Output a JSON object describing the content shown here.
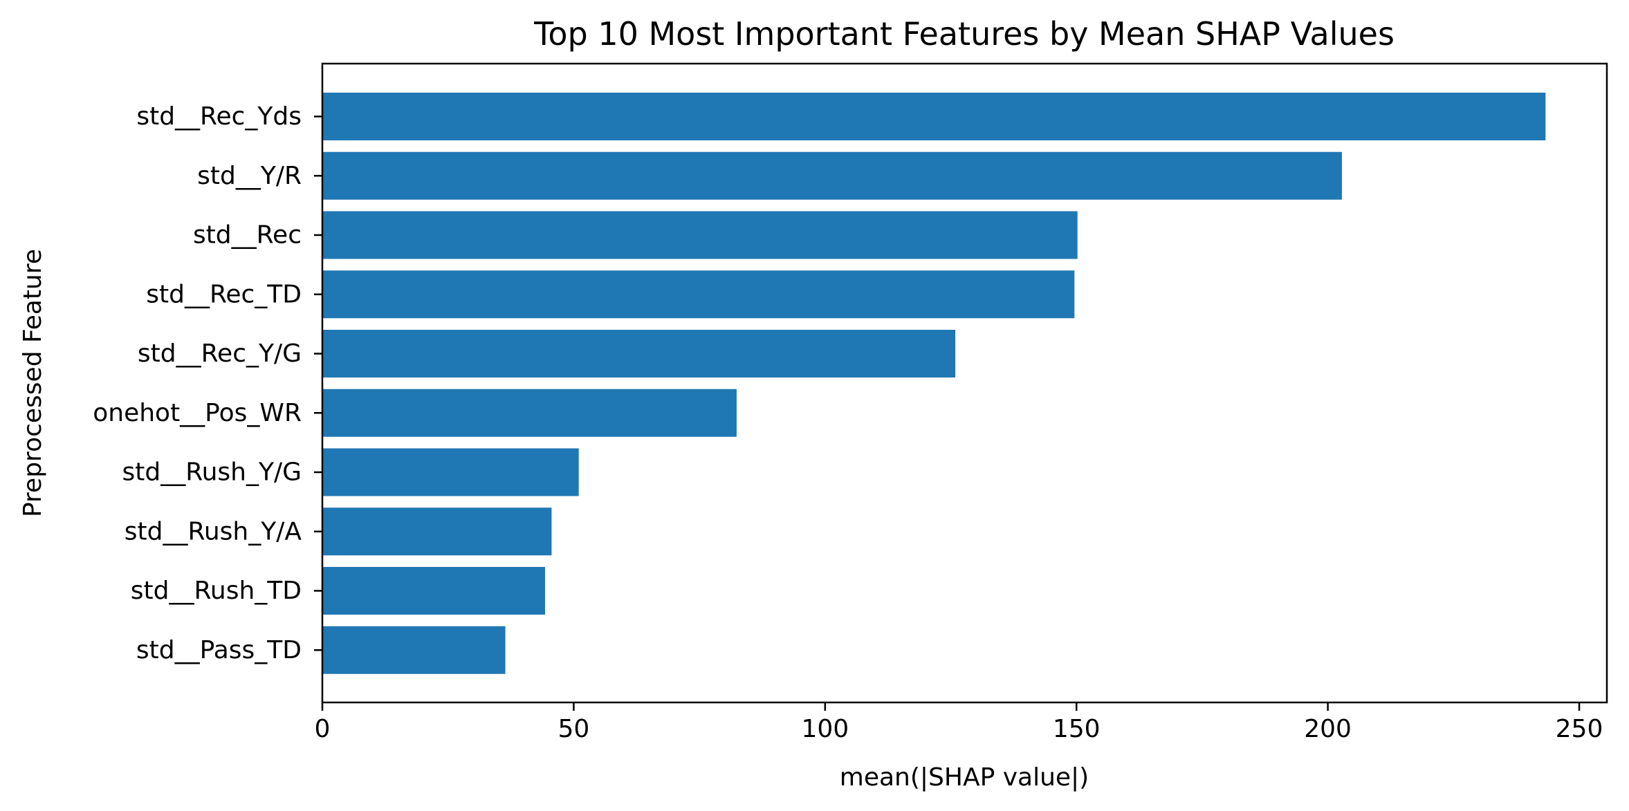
{
  "chart_data": {
    "type": "bar",
    "orientation": "horizontal",
    "title": "Top 10 Most Important Features by Mean SHAP Values",
    "xlabel": "mean(|SHAP value|)",
    "ylabel": "Preprocessed Feature",
    "categories": [
      "std__Rec_Yds",
      "std__Y/R",
      "std__Rec",
      "std__Rec_TD",
      "std__Rec_Y/G",
      "onehot__Pos_WR",
      "std__Rush_Y/G",
      "std__Rush_Y/A",
      "std__Rush_TD",
      "std__Pass_TD"
    ],
    "values": [
      243.3,
      202.8,
      150.2,
      149.6,
      125.9,
      82.4,
      51.0,
      45.6,
      44.3,
      36.4
    ],
    "xlim": [
      0,
      255.5
    ],
    "xticks": [
      0,
      50,
      100,
      150,
      200,
      250
    ],
    "grid": false,
    "bar_color": "#1f77b4"
  }
}
